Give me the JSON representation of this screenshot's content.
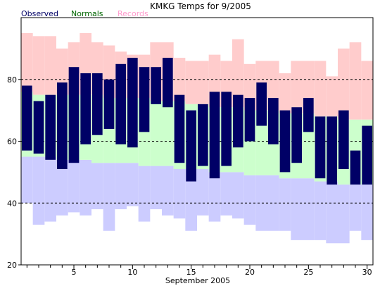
{
  "chart_data": {
    "type": "bar",
    "title": "KMKG Temps for 9/2005",
    "xlabel": "September 2005",
    "ylabel": "",
    "ylim": [
      20,
      100
    ],
    "xlim": [
      0.5,
      30.5
    ],
    "y_ticks": [
      20,
      40,
      60,
      80
    ],
    "x_ticks": [
      5,
      10,
      15,
      20,
      25,
      30
    ],
    "gridlines": [
      40,
      60,
      80
    ],
    "legend_position": "top-left",
    "colors": {
      "observed": "#000066",
      "normals": "#ccffcc",
      "records": "#ffcccc",
      "record_low_fill": "#ccccff",
      "normals_text": "#006600",
      "records_text": "#ff99cc",
      "observed_text": "#000066"
    },
    "days": [
      1,
      2,
      3,
      4,
      5,
      6,
      7,
      8,
      9,
      10,
      11,
      12,
      13,
      14,
      15,
      16,
      17,
      18,
      19,
      20,
      21,
      22,
      23,
      24,
      25,
      26,
      27,
      28,
      29,
      30
    ],
    "series": [
      {
        "name": "Observed",
        "key": "observed",
        "high": [
          78,
          73,
          75,
          79,
          84,
          82,
          82,
          80,
          85,
          87,
          84,
          84,
          87,
          75,
          70,
          72,
          76,
          76,
          75,
          74,
          79,
          74,
          70,
          71,
          74,
          68,
          68,
          70,
          57,
          65
        ],
        "low": [
          57,
          56,
          54,
          51,
          53,
          59,
          62,
          64,
          59,
          58,
          63,
          72,
          71,
          53,
          47,
          52,
          48,
          52,
          58,
          60,
          65,
          59,
          50,
          53,
          63,
          48,
          46,
          51,
          46,
          46
        ]
      },
      {
        "name": "Normals",
        "key": "normals",
        "high": [
          76,
          75,
          75,
          75,
          75,
          75,
          75,
          74,
          74,
          74,
          74,
          73,
          73,
          73,
          72,
          72,
          71,
          71,
          71,
          70,
          70,
          70,
          69,
          69,
          69,
          68,
          68,
          67,
          67,
          67
        ],
        "low": [
          55,
          55,
          55,
          54,
          54,
          54,
          53,
          53,
          53,
          53,
          52,
          52,
          52,
          51,
          51,
          51,
          50,
          50,
          50,
          49,
          49,
          49,
          48,
          48,
          48,
          47,
          47,
          46,
          46,
          46
        ]
      },
      {
        "name": "Records",
        "key": "records",
        "high": [
          95,
          94,
          94,
          90,
          92,
          95,
          92,
          91,
          89,
          88,
          88,
          92,
          92,
          87,
          86,
          86,
          88,
          86,
          93,
          85,
          86,
          86,
          82,
          86,
          86,
          86,
          81,
          90,
          92,
          86
        ],
        "low": [
          40,
          33,
          34,
          36,
          37,
          36,
          38,
          31,
          38,
          39,
          34,
          38,
          36,
          35,
          31,
          36,
          34,
          36,
          35,
          33,
          31,
          31,
          31,
          28,
          28,
          28,
          27,
          27,
          31,
          28
        ]
      }
    ]
  }
}
